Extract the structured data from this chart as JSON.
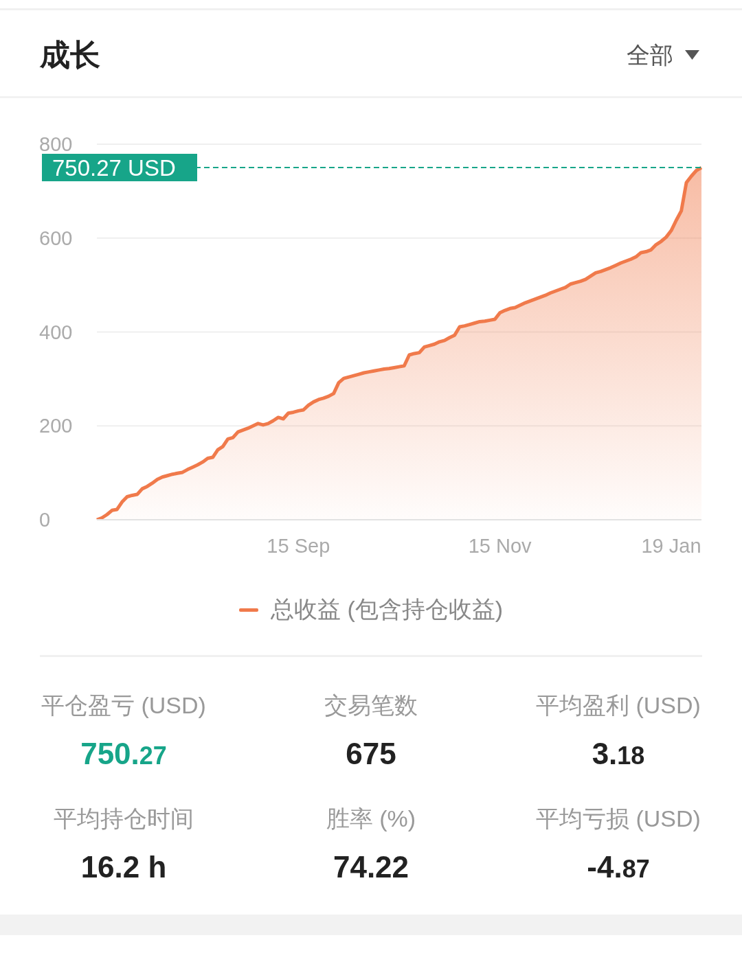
{
  "chart_data": {
    "type": "area",
    "title": "成长",
    "categories": [
      null,
      null,
      null,
      null,
      null,
      null,
      null,
      null,
      null,
      null,
      null,
      null,
      null,
      null,
      null,
      null,
      null,
      null,
      null,
      null,
      null,
      null,
      null,
      null,
      null,
      null,
      null,
      null,
      null,
      null,
      null,
      null,
      null,
      null,
      null,
      null,
      null,
      null,
      null,
      null,
      "15 Sep",
      null,
      null,
      null,
      null,
      null,
      null,
      null,
      null,
      null,
      null,
      null,
      null,
      null,
      null,
      null,
      null,
      null,
      null,
      null,
      null,
      null,
      null,
      null,
      null,
      null,
      null,
      null,
      null,
      null,
      null,
      null,
      null,
      null,
      null,
      null,
      null,
      null,
      null,
      null,
      "15 Nov",
      null,
      null,
      null,
      null,
      null,
      null,
      null,
      null,
      null,
      null,
      null,
      null,
      null,
      null,
      null,
      null,
      null,
      null,
      null,
      null,
      null,
      null,
      null,
      null,
      null,
      null,
      null,
      null,
      null,
      null,
      null,
      null,
      null,
      "19 Jan",
      null,
      null,
      null,
      null,
      null,
      null
    ],
    "series": [
      {
        "name": "总收益 (包含持仓收益)",
        "color": "#f07a4b",
        "values": [
          0,
          4,
          11,
          20,
          22,
          38,
          49,
          52,
          54,
          66,
          71,
          78,
          86,
          91,
          94,
          97,
          99,
          101,
          107,
          112,
          117,
          123,
          131,
          133,
          149,
          156,
          172,
          175,
          187,
          191,
          195,
          200,
          205,
          202,
          205,
          211,
          218,
          215,
          227,
          229,
          232,
          234,
          244,
          251,
          256,
          259,
          263,
          269,
          292,
          301,
          304,
          307,
          310,
          313,
          315,
          317,
          319,
          321,
          322,
          324,
          326,
          328,
          351,
          354,
          356,
          368,
          371,
          374,
          379,
          382,
          388,
          393,
          411,
          413,
          416,
          419,
          422,
          423,
          425,
          427,
          441,
          446,
          450,
          452,
          457,
          462,
          466,
          470,
          474,
          478,
          483,
          487,
          491,
          495,
          502,
          505,
          508,
          512,
          519,
          526,
          529,
          533,
          537,
          542,
          547,
          551,
          555,
          560,
          569,
          571,
          575,
          586,
          593,
          602,
          616,
          638,
          658,
          718,
          732,
          744,
          750
        ]
      }
    ],
    "ylim": [
      0,
      800
    ],
    "yticks": [
      0,
      200,
      400,
      600,
      800
    ],
    "grid": "y",
    "legend": "bottom",
    "ref_lines": [
      {
        "axis": "y",
        "value": 750.27,
        "label": "750.27 USD",
        "color": "#17a589",
        "line_style": "dashed"
      }
    ],
    "annotations": [
      "全部",
      "平仓盈亏 (USD)",
      "750.27",
      "交易笔数",
      "675",
      "平均盈利 (USD)",
      "3.18",
      "平均持仓时间",
      "16.2 h",
      "胜率 (%)",
      "74.22",
      "平均亏损 (USD)",
      "-4.87"
    ]
  }
}
